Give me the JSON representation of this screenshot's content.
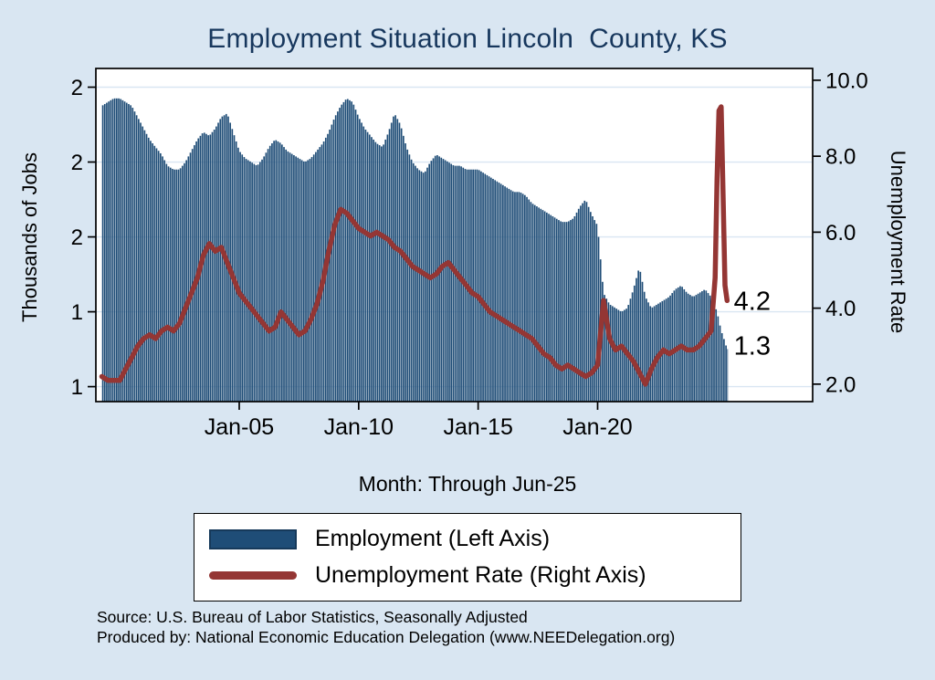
{
  "title": "Employment Situation Lincoln  County, KS",
  "colors": {
    "background": "#d9e6f2",
    "bars": "#1f4d77",
    "line": "#943634",
    "grid": "#d9e6f2",
    "title": "#17375d",
    "plot_background": "#ffffff"
  },
  "chart_data": {
    "type": "bar+line",
    "title": "Employment Situation Lincoln  County, KS",
    "x_axis": {
      "title": "Month: Through Jun-25",
      "xlim": [
        1999,
        2029
      ],
      "ticks": [
        {
          "value": 2005,
          "label": "Jan-05"
        },
        {
          "value": 2010,
          "label": "Jan-10"
        },
        {
          "value": 2015,
          "label": "Jan-15"
        },
        {
          "value": 2020,
          "label": "Jan-20"
        }
      ]
    },
    "y_left": {
      "title": "Thousands of Jobs",
      "ylim": [
        1.16,
        2.05
      ],
      "ticks": [
        {
          "value": 2.0,
          "label": "2"
        },
        {
          "value": 1.8,
          "label": "2"
        },
        {
          "value": 1.6,
          "label": "2"
        },
        {
          "value": 1.4,
          "label": "1"
        },
        {
          "value": 1.2,
          "label": "1"
        }
      ]
    },
    "y_right": {
      "title": "Unemployment Rate",
      "ylim": [
        1.54,
        10.31
      ],
      "ticks": [
        {
          "value": 10,
          "label": "10.0"
        },
        {
          "value": 8,
          "label": "8.0"
        },
        {
          "value": 6,
          "label": "6.0"
        },
        {
          "value": 4,
          "label": "4.0"
        },
        {
          "value": 2,
          "label": "2.0"
        }
      ]
    },
    "series": [
      {
        "name": "Employment (Left Axis)",
        "type": "bar",
        "axis": "left",
        "color": "#1f4d77",
        "end_label": "1.3",
        "x": [
          1999.25,
          1999.5,
          1999.75,
          2000,
          2000.25,
          2000.5,
          2000.75,
          2001,
          2001.25,
          2001.5,
          2001.75,
          2002,
          2002.25,
          2002.5,
          2002.75,
          2003,
          2003.25,
          2003.5,
          2003.75,
          2004,
          2004.25,
          2004.5,
          2004.75,
          2005,
          2005.25,
          2005.5,
          2005.75,
          2006,
          2006.25,
          2006.5,
          2006.75,
          2007,
          2007.25,
          2007.5,
          2007.75,
          2008,
          2008.25,
          2008.5,
          2008.75,
          2009,
          2009.25,
          2009.5,
          2009.75,
          2010,
          2010.25,
          2010.5,
          2010.75,
          2011,
          2011.25,
          2011.5,
          2011.75,
          2012,
          2012.25,
          2012.5,
          2012.75,
          2013,
          2013.25,
          2013.5,
          2013.75,
          2014,
          2014.25,
          2014.5,
          2014.75,
          2015,
          2015.25,
          2015.5,
          2015.75,
          2016,
          2016.25,
          2016.5,
          2016.75,
          2017,
          2017.25,
          2017.5,
          2017.75,
          2018,
          2018.25,
          2018.5,
          2018.75,
          2019,
          2019.25,
          2019.5,
          2019.75,
          2020,
          2020.25,
          2020.5,
          2020.75,
          2021,
          2021.25,
          2021.5,
          2021.75,
          2022,
          2022.25,
          2022.5,
          2022.75,
          2023,
          2023.25,
          2023.5,
          2023.75,
          2024,
          2024.25,
          2024.5,
          2024.75,
          2025,
          2025.17,
          2025.33,
          2025.42
        ],
        "values": [
          1.95,
          1.96,
          1.97,
          1.97,
          1.96,
          1.95,
          1.92,
          1.89,
          1.86,
          1.84,
          1.82,
          1.79,
          1.78,
          1.78,
          1.8,
          1.83,
          1.86,
          1.88,
          1.87,
          1.89,
          1.92,
          1.93,
          1.88,
          1.83,
          1.81,
          1.8,
          1.79,
          1.81,
          1.84,
          1.86,
          1.85,
          1.83,
          1.82,
          1.81,
          1.8,
          1.81,
          1.83,
          1.85,
          1.88,
          1.92,
          1.95,
          1.97,
          1.96,
          1.92,
          1.89,
          1.87,
          1.85,
          1.84,
          1.88,
          1.93,
          1.9,
          1.84,
          1.8,
          1.78,
          1.77,
          1.8,
          1.82,
          1.81,
          1.8,
          1.79,
          1.79,
          1.78,
          1.78,
          1.78,
          1.77,
          1.76,
          1.75,
          1.74,
          1.73,
          1.72,
          1.72,
          1.71,
          1.69,
          1.68,
          1.67,
          1.66,
          1.65,
          1.64,
          1.64,
          1.65,
          1.68,
          1.7,
          1.66,
          1.63,
          1.45,
          1.42,
          1.41,
          1.4,
          1.41,
          1.46,
          1.52,
          1.44,
          1.41,
          1.42,
          1.43,
          1.44,
          1.46,
          1.47,
          1.45,
          1.44,
          1.45,
          1.46,
          1.44,
          1.4,
          1.35,
          1.32,
          1.3
        ]
      },
      {
        "name": "Unemployment Rate (Right Axis)",
        "type": "line",
        "axis": "right",
        "color": "#943634",
        "end_label": "4.2",
        "x": [
          1999.25,
          1999.5,
          1999.75,
          2000,
          2000.25,
          2000.5,
          2000.75,
          2001,
          2001.25,
          2001.5,
          2001.75,
          2002,
          2002.25,
          2002.5,
          2002.75,
          2003,
          2003.25,
          2003.5,
          2003.75,
          2004,
          2004.25,
          2004.5,
          2004.75,
          2005,
          2005.25,
          2005.5,
          2005.75,
          2006,
          2006.25,
          2006.5,
          2006.75,
          2007,
          2007.25,
          2007.5,
          2007.75,
          2008,
          2008.25,
          2008.5,
          2008.75,
          2009,
          2009.25,
          2009.5,
          2009.75,
          2010,
          2010.25,
          2010.5,
          2010.75,
          2011,
          2011.25,
          2011.5,
          2011.75,
          2012,
          2012.25,
          2012.5,
          2012.75,
          2013,
          2013.25,
          2013.5,
          2013.75,
          2014,
          2014.25,
          2014.5,
          2014.75,
          2015,
          2015.25,
          2015.5,
          2015.75,
          2016,
          2016.25,
          2016.5,
          2016.75,
          2017,
          2017.25,
          2017.5,
          2017.75,
          2018,
          2018.25,
          2018.5,
          2018.75,
          2019,
          2019.25,
          2019.5,
          2019.75,
          2020,
          2020.25,
          2020.5,
          2020.75,
          2021,
          2021.25,
          2021.5,
          2021.75,
          2022,
          2022.25,
          2022.5,
          2022.75,
          2023,
          2023.25,
          2023.5,
          2023.75,
          2024,
          2024.25,
          2024.5,
          2024.75,
          2024.92,
          2025,
          2025.08,
          2025.17,
          2025.25,
          2025.33,
          2025.42
        ],
        "values": [
          2.2,
          2.1,
          2.1,
          2.1,
          2.4,
          2.7,
          3.0,
          3.2,
          3.3,
          3.2,
          3.4,
          3.5,
          3.4,
          3.6,
          4.0,
          4.4,
          4.8,
          5.4,
          5.7,
          5.5,
          5.6,
          5.2,
          4.8,
          4.4,
          4.2,
          4.0,
          3.8,
          3.6,
          3.4,
          3.5,
          3.9,
          3.7,
          3.5,
          3.3,
          3.4,
          3.7,
          4.1,
          4.7,
          5.5,
          6.2,
          6.6,
          6.5,
          6.3,
          6.1,
          6.0,
          5.9,
          6.0,
          5.9,
          5.8,
          5.6,
          5.5,
          5.3,
          5.1,
          5.0,
          4.9,
          4.8,
          4.9,
          5.1,
          5.2,
          5.0,
          4.8,
          4.6,
          4.4,
          4.3,
          4.1,
          3.9,
          3.8,
          3.7,
          3.6,
          3.5,
          3.4,
          3.3,
          3.2,
          3.0,
          2.8,
          2.7,
          2.5,
          2.4,
          2.5,
          2.4,
          2.3,
          2.2,
          2.3,
          2.5,
          4.2,
          3.2,
          2.9,
          3.0,
          2.8,
          2.6,
          2.3,
          2.0,
          2.4,
          2.7,
          2.9,
          2.8,
          2.9,
          3.0,
          2.9,
          2.9,
          3.0,
          3.2,
          3.4,
          4.8,
          7.4,
          9.2,
          9.3,
          7.0,
          4.6,
          4.2
        ]
      }
    ],
    "annotations": [
      {
        "text": "4.2",
        "axis": "right",
        "x": 2025.7,
        "y": 4.2
      },
      {
        "text": "1.3",
        "axis": "left",
        "x": 2025.7,
        "y": 1.31
      }
    ],
    "grid": true,
    "legend_position": "bottom"
  },
  "legend": {
    "items": [
      {
        "label": "Employment (Left Axis)",
        "swatch": "bar"
      },
      {
        "label": "Unemployment Rate (Right Axis)",
        "swatch": "line"
      }
    ]
  },
  "footer": {
    "line1": "Source: U.S. Bureau of Labor Statistics, Seasonally Adjusted",
    "line2": "Produced by: National Economic Education Delegation (www.NEEDelegation.org)"
  }
}
